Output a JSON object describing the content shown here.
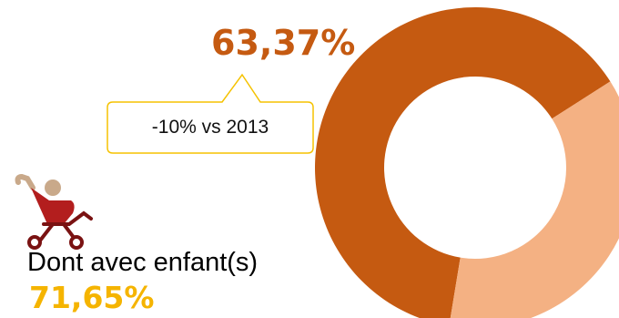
{
  "chart_data": {
    "type": "pie",
    "subtype": "donut",
    "segments": [
      {
        "value": 63.37,
        "color": "#c55a11"
      },
      {
        "value": 36.63,
        "color": "#f4b183"
      }
    ],
    "main_label": "63,37%",
    "callout": "-10% vs 2013",
    "sub_label": "Dont avec enfant(s)",
    "sub_value": "71,65%"
  },
  "colors": {
    "main_pct": "#c55a11",
    "sub_pct": "#f5b400",
    "callout_border": "#f5c200",
    "stroller_body": "#b31e1e",
    "stroller_frame": "#7a1212",
    "stroller_handle": "#c9a98a"
  },
  "icons": {
    "stroller": "stroller-icon"
  }
}
